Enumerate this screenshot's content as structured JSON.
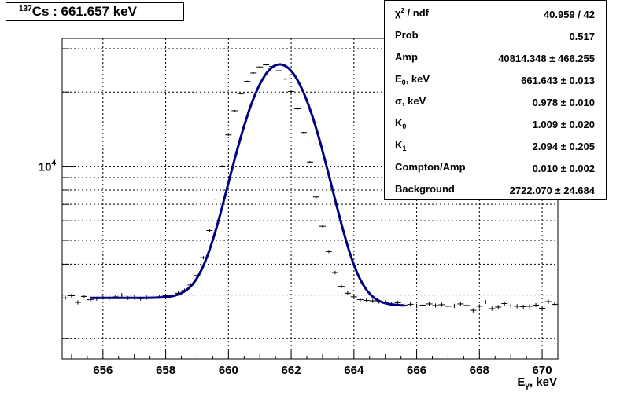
{
  "title": {
    "isotope_mass": "137",
    "text": "Cs : 661.657 keV"
  },
  "stats": [
    {
      "name": "χ² / ndf",
      "value": "40.959 / 42"
    },
    {
      "name": "Prob",
      "value": "0.517"
    },
    {
      "name": "Amp",
      "value": "40814.348 ± 466.255"
    },
    {
      "name": "E0, keV",
      "value": "661.643 ± 0.013"
    },
    {
      "name": "σ, keV",
      "value": "0.978 ± 0.010"
    },
    {
      "name": "K0",
      "value": "1.009 ± 0.020"
    },
    {
      "name": "K1",
      "value": "2.094 ± 0.205"
    },
    {
      "name": "Compton/Amp",
      "value": "0.010 ± 0.002"
    },
    {
      "name": "Background",
      "value": "2722.070 ± 24.684"
    }
  ],
  "chart_data": {
    "type": "scatter",
    "xlabel": "Eγ, keV",
    "ylabel": "",
    "xlim": [
      654.7,
      670.5
    ],
    "ylim": [
      1650,
      33000
    ],
    "y_log_scale": true,
    "grid": true,
    "x_ticks": [
      "656",
      "658",
      "660",
      "662",
      "664",
      "666",
      "668",
      "670"
    ],
    "y_tick_label": "10^4",
    "series": [
      {
        "kind": "data-points-with-errorbars",
        "color": "#000000",
        "x": [
          654.8,
          655.0,
          655.2,
          655.4,
          655.6,
          655.8,
          656.0,
          656.2,
          656.4,
          656.6,
          656.8,
          657.0,
          657.2,
          657.4,
          657.6,
          657.8,
          658.0,
          658.2,
          658.4,
          658.6,
          658.8,
          659.0,
          659.2,
          659.4,
          659.6,
          659.8,
          660.0,
          660.2,
          660.4,
          660.6,
          660.8,
          661.0,
          661.2,
          661.4,
          661.6,
          661.8,
          662.0,
          662.2,
          662.4,
          662.6,
          662.8,
          663.0,
          663.2,
          663.4,
          663.6,
          663.8,
          664.0,
          664.2,
          664.4,
          664.6,
          664.8,
          665.0,
          665.2,
          665.4,
          665.6,
          665.8,
          666.0,
          666.2,
          666.4,
          666.6,
          666.8,
          667.0,
          667.2,
          667.4,
          667.6,
          667.8,
          668.0,
          668.2,
          668.4,
          668.6,
          668.8,
          669.0,
          669.2,
          669.4,
          669.6,
          669.8,
          670.0,
          670.2,
          670.4
        ],
        "y": [
          2920,
          2980,
          2800,
          2960,
          2870,
          2900,
          2930,
          2910,
          2950,
          3000,
          2920,
          2930,
          2900,
          2930,
          2940,
          2950,
          2980,
          3000,
          3050,
          3130,
          3290,
          3600,
          4250,
          5480,
          7350,
          10000,
          13400,
          16800,
          19700,
          22100,
          23900,
          25300,
          25800,
          25400,
          24400,
          22600,
          20100,
          17100,
          13700,
          10400,
          7500,
          5700,
          4500,
          3700,
          3250,
          3050,
          2950,
          2870,
          2850,
          2840,
          2820,
          2800,
          2760,
          2790,
          2730,
          2750,
          2710,
          2730,
          2760,
          2720,
          2740,
          2700,
          2710,
          2760,
          2720,
          2600,
          2700,
          2810,
          2640,
          2680,
          2770,
          2710,
          2700,
          2690,
          2700,
          2730,
          2650,
          2820,
          2750
        ]
      },
      {
        "kind": "fit-curve",
        "color": "#000080",
        "x_range": [
          655.6,
          665.6
        ],
        "peak_x": 661.643,
        "sigma": 0.978,
        "peak_y": 26000,
        "baseline": 2920
      }
    ]
  }
}
